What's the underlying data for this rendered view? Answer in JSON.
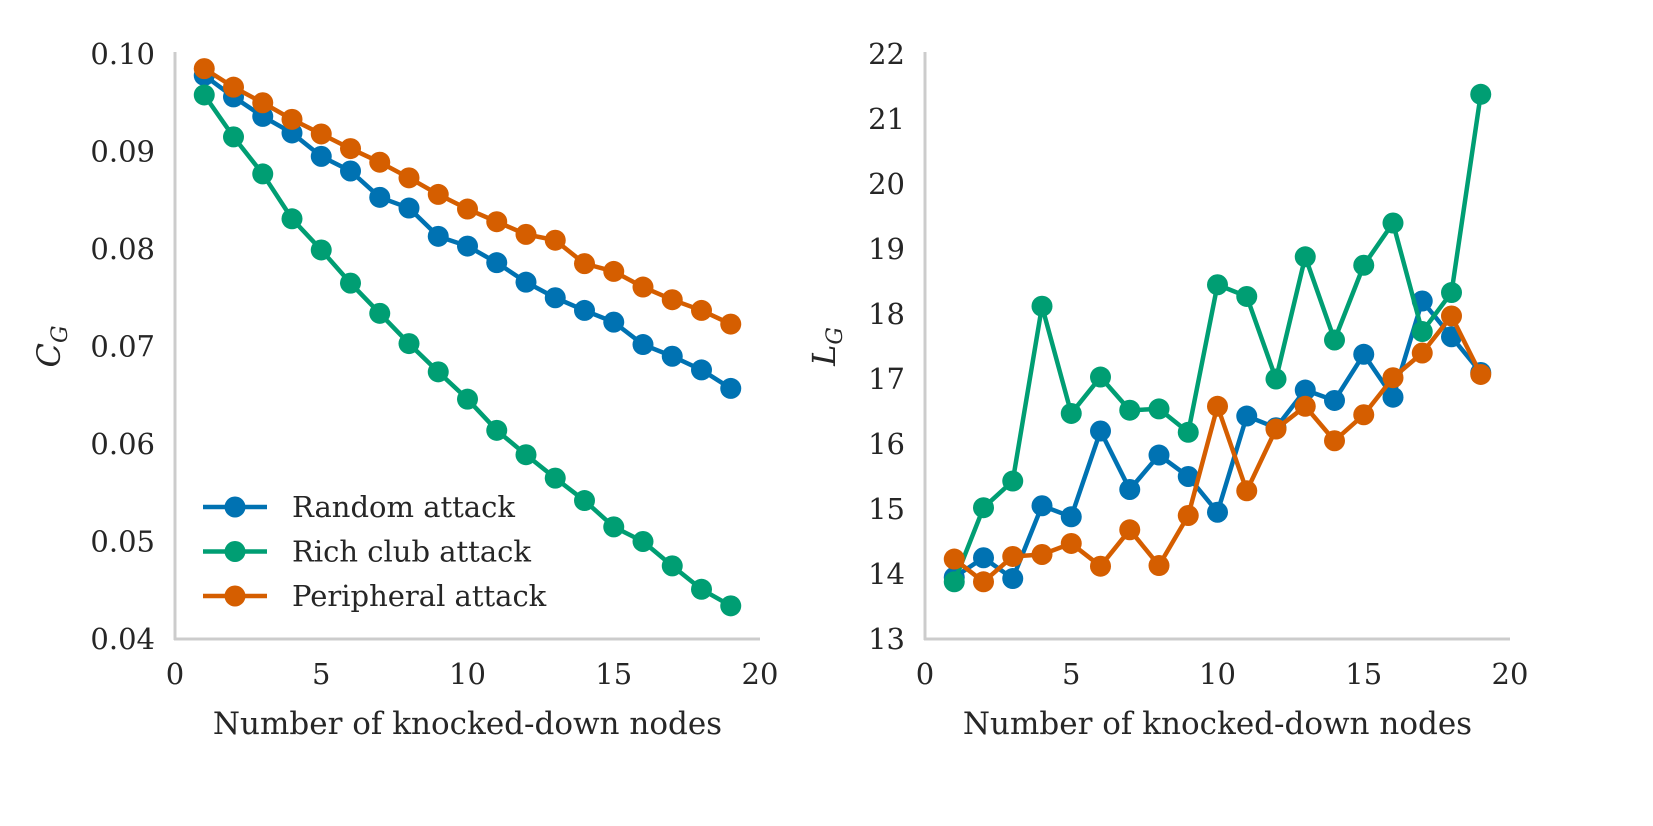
{
  "chart_data": [
    {
      "type": "line",
      "title": "",
      "xlabel": "Number of knocked-down nodes",
      "ylabel": "C",
      "ylabel_sub": "G",
      "xlim": [
        0,
        20
      ],
      "ylim": [
        0.04,
        0.1
      ],
      "xticks": [
        0,
        5,
        10,
        15,
        20
      ],
      "yticks": [
        0.04,
        0.05,
        0.06,
        0.07,
        0.08,
        0.09,
        0.1
      ],
      "ytick_labels": [
        "0.04",
        "0.05",
        "0.06",
        "0.07",
        "0.08",
        "0.09",
        "0.10"
      ],
      "grid": false,
      "legend": {
        "position": "lower-left",
        "entries": [
          "Random attack",
          "Rich club attack",
          "Peripheral attack"
        ]
      },
      "x": [
        1,
        2,
        3,
        4,
        5,
        6,
        7,
        8,
        9,
        10,
        11,
        12,
        13,
        14,
        15,
        16,
        17,
        18,
        19
      ],
      "series": [
        {
          "name": "Random attack",
          "color": "#0072b2",
          "values": [
            0.0978,
            0.0956,
            0.0936,
            0.0919,
            0.0895,
            0.088,
            0.0853,
            0.0842,
            0.0813,
            0.0803,
            0.0786,
            0.0766,
            0.075,
            0.0737,
            0.0725,
            0.0702,
            0.069,
            0.0676,
            0.0657
          ]
        },
        {
          "name": "Rich club attack",
          "color": "#009e73",
          "values": [
            0.0958,
            0.0915,
            0.0877,
            0.0831,
            0.0799,
            0.0765,
            0.0734,
            0.0703,
            0.0674,
            0.0646,
            0.0614,
            0.0589,
            0.0565,
            0.0542,
            0.0515,
            0.05,
            0.0475,
            0.0451,
            0.0434
          ]
        },
        {
          "name": "Peripheral attack",
          "color": "#d55e00",
          "values": [
            0.0985,
            0.0966,
            0.095,
            0.0933,
            0.0918,
            0.0903,
            0.0889,
            0.0873,
            0.0856,
            0.0841,
            0.0828,
            0.0815,
            0.0809,
            0.0785,
            0.0777,
            0.0761,
            0.0748,
            0.0737,
            0.0723
          ]
        }
      ]
    },
    {
      "type": "line",
      "title": "",
      "xlabel": "Number of knocked-down nodes",
      "ylabel": "L",
      "ylabel_sub": "G",
      "xlim": [
        0,
        20
      ],
      "ylim": [
        13,
        22
      ],
      "xticks": [
        0,
        5,
        10,
        15,
        20
      ],
      "yticks": [
        13,
        14,
        15,
        16,
        17,
        18,
        19,
        20,
        21,
        22
      ],
      "ytick_labels": [
        "13",
        "14",
        "15",
        "16",
        "17",
        "18",
        "19",
        "20",
        "21",
        "22"
      ],
      "grid": false,
      "x": [
        1,
        2,
        3,
        4,
        5,
        6,
        7,
        8,
        9,
        10,
        11,
        12,
        13,
        14,
        15,
        16,
        17,
        18,
        19
      ],
      "series": [
        {
          "name": "Random attack",
          "color": "#0072b2",
          "values": [
            13.95,
            14.25,
            13.93,
            15.05,
            14.88,
            16.2,
            15.3,
            15.83,
            15.5,
            14.95,
            16.43,
            16.25,
            16.83,
            16.67,
            17.38,
            16.72,
            18.2,
            17.65,
            17.1
          ]
        },
        {
          "name": "Rich club attack",
          "color": "#009e73",
          "values": [
            13.88,
            15.02,
            15.43,
            18.12,
            16.47,
            17.03,
            16.52,
            16.54,
            16.18,
            18.45,
            18.27,
            17.0,
            18.88,
            17.6,
            18.75,
            19.4,
            17.73,
            18.33,
            21.38
          ]
        },
        {
          "name": "Peripheral attack",
          "color": "#d55e00",
          "values": [
            14.23,
            13.88,
            14.27,
            14.3,
            14.47,
            14.12,
            14.68,
            14.13,
            14.9,
            16.58,
            15.28,
            16.23,
            16.58,
            16.05,
            16.45,
            17.02,
            17.4,
            17.97,
            17.07
          ]
        }
      ]
    }
  ]
}
